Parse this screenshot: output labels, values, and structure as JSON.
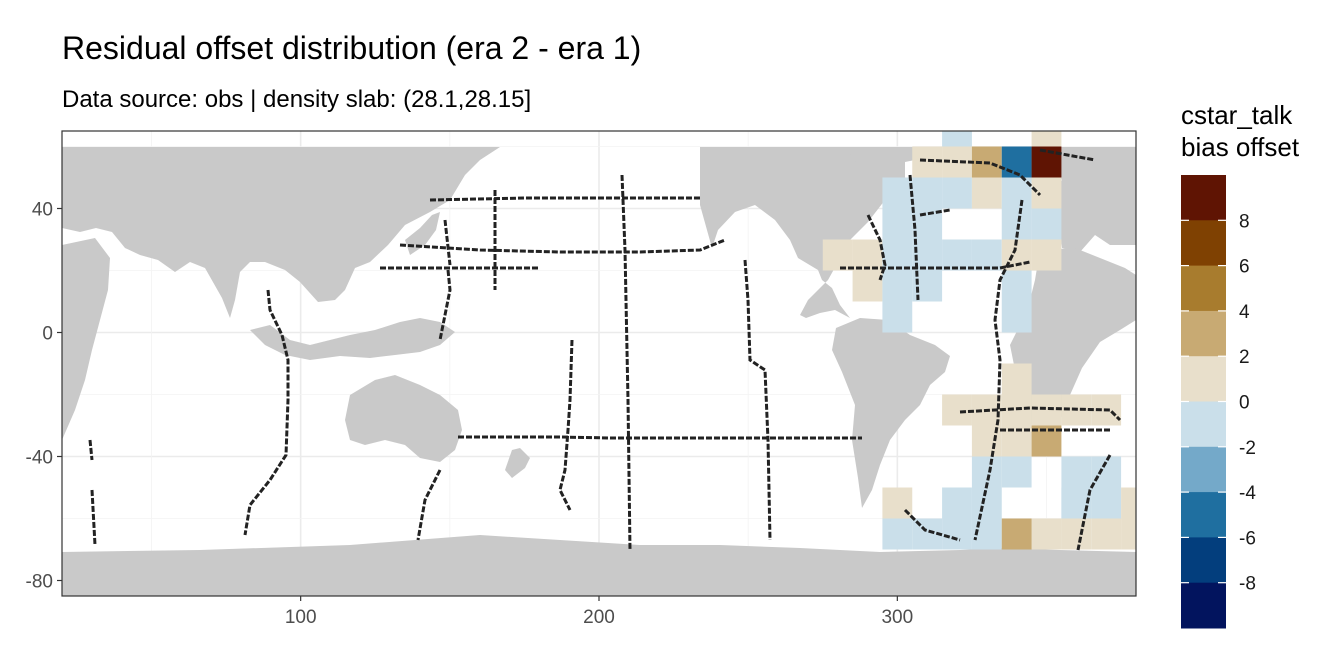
{
  "chart_data": {
    "type": "heatmap",
    "title": "Residual offset distribution (era 2 - era 1)",
    "subtitle": "Data source: obs | density slab: (28.1,28.15]",
    "xlabel": "",
    "ylabel": "",
    "xlim": [
      20,
      380
    ],
    "ylim": [
      -85,
      65
    ],
    "x_ticks": [
      100,
      200,
      300
    ],
    "y_ticks": [
      40,
      0,
      -40,
      -80
    ],
    "grid": true,
    "legend": {
      "title_lines": [
        "cstar_talk",
        "bias offset"
      ],
      "position": "right",
      "breaks": [
        8,
        6,
        4,
        2,
        0,
        -2,
        -4,
        -6,
        -8
      ],
      "colors": [
        "#5f1403",
        "#7f4102",
        "#a87c2e",
        "#c8aa73",
        "#e8dfcb",
        "#cadfea",
        "#74a9c9",
        "#1f6fa0",
        "#033e7d",
        "#02145e"
      ]
    },
    "cell_size_deg": 10,
    "cells": [
      {
        "lon": 320,
        "lat": 65,
        "value": -1
      },
      {
        "lon": 350,
        "lat": 65,
        "value": 1
      },
      {
        "lon": 310,
        "lat": 55,
        "value": 1
      },
      {
        "lon": 320,
        "lat": 55,
        "value": 1
      },
      {
        "lon": 330,
        "lat": 55,
        "value": 3
      },
      {
        "lon": 340,
        "lat": 55,
        "value": -5
      },
      {
        "lon": 350,
        "lat": 55,
        "value": 9
      },
      {
        "lon": 300,
        "lat": 45,
        "value": -1
      },
      {
        "lon": 310,
        "lat": 45,
        "value": -1
      },
      {
        "lon": 320,
        "lat": 45,
        "value": -1
      },
      {
        "lon": 330,
        "lat": 45,
        "value": 1
      },
      {
        "lon": 340,
        "lat": 45,
        "value": -1
      },
      {
        "lon": 350,
        "lat": 45,
        "value": 1
      },
      {
        "lon": 300,
        "lat": 35,
        "value": -1
      },
      {
        "lon": 310,
        "lat": 35,
        "value": -1
      },
      {
        "lon": 340,
        "lat": 35,
        "value": -1
      },
      {
        "lon": 350,
        "lat": 35,
        "value": -1
      },
      {
        "lon": 280,
        "lat": 25,
        "value": 1
      },
      {
        "lon": 290,
        "lat": 25,
        "value": 1
      },
      {
        "lon": 300,
        "lat": 25,
        "value": -1
      },
      {
        "lon": 310,
        "lat": 25,
        "value": -1
      },
      {
        "lon": 320,
        "lat": 25,
        "value": -1
      },
      {
        "lon": 330,
        "lat": 25,
        "value": -1
      },
      {
        "lon": 340,
        "lat": 25,
        "value": 1
      },
      {
        "lon": 350,
        "lat": 25,
        "value": 1
      },
      {
        "lon": 290,
        "lat": 15,
        "value": 1
      },
      {
        "lon": 300,
        "lat": 15,
        "value": -1
      },
      {
        "lon": 310,
        "lat": 15,
        "value": -1
      },
      {
        "lon": 340,
        "lat": 15,
        "value": -1
      },
      {
        "lon": 300,
        "lat": 5,
        "value": -1
      },
      {
        "lon": 340,
        "lat": 5,
        "value": -1
      },
      {
        "lon": 340,
        "lat": -15,
        "value": 1
      },
      {
        "lon": 340,
        "lat": -25,
        "value": 1
      },
      {
        "lon": 320,
        "lat": -25,
        "value": 1
      },
      {
        "lon": 330,
        "lat": -25,
        "value": 1
      },
      {
        "lon": 350,
        "lat": -25,
        "value": 1
      },
      {
        "lon": 360,
        "lat": -25,
        "value": 1
      },
      {
        "lon": 370,
        "lat": -25,
        "value": 1
      },
      {
        "lon": 330,
        "lat": -35,
        "value": 1
      },
      {
        "lon": 340,
        "lat": -35,
        "value": 1
      },
      {
        "lon": 350,
        "lat": -35,
        "value": 3
      },
      {
        "lon": 330,
        "lat": -45,
        "value": -1
      },
      {
        "lon": 340,
        "lat": -45,
        "value": -1
      },
      {
        "lon": 370,
        "lat": -45,
        "value": -1
      },
      {
        "lon": 320,
        "lat": -55,
        "value": -1
      },
      {
        "lon": 330,
        "lat": -55,
        "value": -1
      },
      {
        "lon": 360,
        "lat": -55,
        "value": -1
      },
      {
        "lon": 300,
        "lat": -55,
        "value": 1
      },
      {
        "lon": 350,
        "lat": -65,
        "value": 1
      },
      {
        "lon": 300,
        "lat": -65,
        "value": -1
      },
      {
        "lon": 310,
        "lat": -65,
        "value": -1
      },
      {
        "lon": 320,
        "lat": -65,
        "value": -1
      },
      {
        "lon": 330,
        "lat": -65,
        "value": -1
      },
      {
        "lon": 340,
        "lat": -65,
        "value": 3
      },
      {
        "lon": 360,
        "lat": -65,
        "value": 1
      },
      {
        "lon": 360,
        "lat": -55,
        "value": -1
      },
      {
        "lon": 370,
        "lat": -55,
        "value": -1
      },
      {
        "lon": 380,
        "lat": -55,
        "value": 1
      },
      {
        "lon": 370,
        "lat": -65,
        "value": 1
      },
      {
        "lon": 380,
        "lat": -65,
        "value": 1
      },
      {
        "lon": 360,
        "lat": -45,
        "value": -1
      }
    ]
  }
}
